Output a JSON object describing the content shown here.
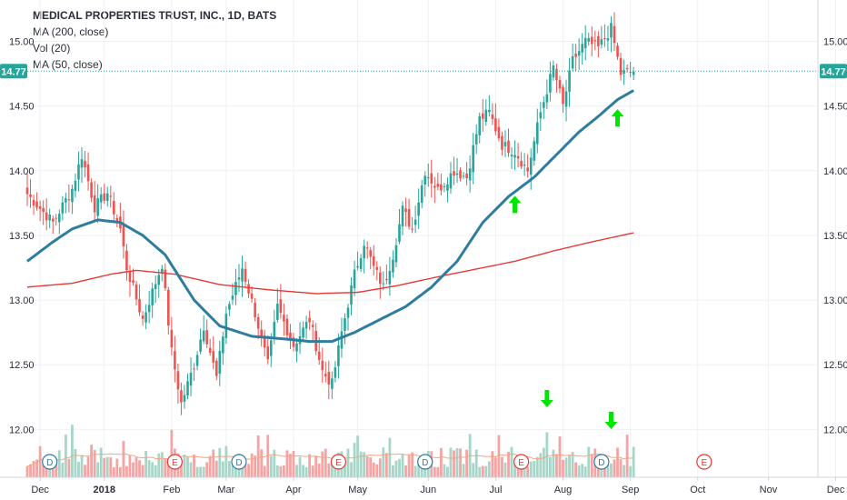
{
  "legend": {
    "title": "MEDICAL PROPERTIES TRUST, INC., 1D, BATS",
    "ma200": "MA (200, close)",
    "vol": "Vol (20)",
    "ma50": "MA (50, close)"
  },
  "colors": {
    "up": "#26a69a",
    "down": "#ef5350",
    "vol_up": "#a5d6c8",
    "vol_down": "#f5a3a3",
    "ma200": "#e53935",
    "ma50": "#2e7d9f",
    "vol_ma": "#f4a582",
    "arrow": "#00e600",
    "last_price": "#26a69a",
    "grid": "#eef0f3",
    "axis_text": "#2a2e39"
  },
  "chart_data": {
    "type": "candlestick",
    "title": "MEDICAL PROPERTIES TRUST, INC., 1D, BATS",
    "y_ticks": [
      "15.00",
      "14.50",
      "14.00",
      "13.50",
      "13.00",
      "12.50",
      "12.00"
    ],
    "ylim": [
      11.63,
      15.32
    ],
    "x_ticks": [
      "Dec",
      "2018",
      "Feb",
      "Mar",
      "Apr",
      "May",
      "Jun",
      "Jul",
      "Aug",
      "Sep",
      "Oct",
      "Nov",
      "Dec"
    ],
    "last_price": 14.77,
    "last_price_label": "14.77",
    "grid": true,
    "anchors": [
      {
        "i": 0,
        "p": 13.82
      },
      {
        "i": 8,
        "p": 13.6
      },
      {
        "i": 14,
        "p": 13.86
      },
      {
        "i": 17,
        "p": 14.12
      },
      {
        "i": 21,
        "p": 13.72
      },
      {
        "i": 25,
        "p": 13.83
      },
      {
        "i": 29,
        "p": 13.55
      },
      {
        "i": 31,
        "p": 13.25
      },
      {
        "i": 36,
        "p": 12.85
      },
      {
        "i": 42,
        "p": 13.28
      },
      {
        "i": 45,
        "p": 12.6
      },
      {
        "i": 48,
        "p": 12.2
      },
      {
        "i": 52,
        "p": 12.5
      },
      {
        "i": 55,
        "p": 12.8
      },
      {
        "i": 59,
        "p": 12.4
      },
      {
        "i": 62,
        "p": 12.9
      },
      {
        "i": 67,
        "p": 13.25
      },
      {
        "i": 71,
        "p": 12.9
      },
      {
        "i": 75,
        "p": 12.5
      },
      {
        "i": 78,
        "p": 12.95
      },
      {
        "i": 83,
        "p": 12.65
      },
      {
        "i": 88,
        "p": 12.85
      },
      {
        "i": 92,
        "p": 12.45
      },
      {
        "i": 95,
        "p": 12.35
      },
      {
        "i": 98,
        "p": 12.75
      },
      {
        "i": 102,
        "p": 13.2
      },
      {
        "i": 105,
        "p": 13.45
      },
      {
        "i": 108,
        "p": 13.25
      },
      {
        "i": 111,
        "p": 13.1
      },
      {
        "i": 114,
        "p": 13.35
      },
      {
        "i": 117,
        "p": 13.7
      },
      {
        "i": 120,
        "p": 13.55
      },
      {
        "i": 124,
        "p": 14.0
      },
      {
        "i": 128,
        "p": 13.85
      },
      {
        "i": 133,
        "p": 14.0
      },
      {
        "i": 137,
        "p": 13.95
      },
      {
        "i": 141,
        "p": 14.4
      },
      {
        "i": 144,
        "p": 14.45
      },
      {
        "i": 148,
        "p": 14.2
      },
      {
        "i": 152,
        "p": 14.15
      },
      {
        "i": 156,
        "p": 14.0
      },
      {
        "i": 160,
        "p": 14.45
      },
      {
        "i": 164,
        "p": 14.8
      },
      {
        "i": 167,
        "p": 14.5
      },
      {
        "i": 170,
        "p": 14.85
      },
      {
        "i": 174,
        "p": 15.0
      },
      {
        "i": 178,
        "p": 14.95
      },
      {
        "i": 182,
        "p": 15.1
      },
      {
        "i": 185,
        "p": 14.75
      },
      {
        "i": 189,
        "p": 14.77
      }
    ],
    "ma50": [
      {
        "i": 0,
        "p": 13.3
      },
      {
        "i": 8,
        "p": 13.45
      },
      {
        "i": 14,
        "p": 13.55
      },
      {
        "i": 22,
        "p": 13.62
      },
      {
        "i": 29,
        "p": 13.6
      },
      {
        "i": 36,
        "p": 13.5
      },
      {
        "i": 43,
        "p": 13.35
      },
      {
        "i": 52,
        "p": 13.0
      },
      {
        "i": 60,
        "p": 12.8
      },
      {
        "i": 70,
        "p": 12.72
      },
      {
        "i": 80,
        "p": 12.7
      },
      {
        "i": 88,
        "p": 12.68
      },
      {
        "i": 95,
        "p": 12.68
      },
      {
        "i": 102,
        "p": 12.75
      },
      {
        "i": 110,
        "p": 12.85
      },
      {
        "i": 118,
        "p": 12.95
      },
      {
        "i": 126,
        "p": 13.1
      },
      {
        "i": 134,
        "p": 13.3
      },
      {
        "i": 142,
        "p": 13.6
      },
      {
        "i": 150,
        "p": 13.8
      },
      {
        "i": 158,
        "p": 13.95
      },
      {
        "i": 166,
        "p": 14.15
      },
      {
        "i": 172,
        "p": 14.3
      },
      {
        "i": 178,
        "p": 14.42
      },
      {
        "i": 184,
        "p": 14.55
      },
      {
        "i": 189,
        "p": 14.62
      }
    ],
    "ma200": [
      {
        "i": 0,
        "p": 13.1
      },
      {
        "i": 14,
        "p": 13.13
      },
      {
        "i": 26,
        "p": 13.2
      },
      {
        "i": 34,
        "p": 13.23
      },
      {
        "i": 46,
        "p": 13.2
      },
      {
        "i": 60,
        "p": 13.12
      },
      {
        "i": 75,
        "p": 13.08
      },
      {
        "i": 90,
        "p": 13.05
      },
      {
        "i": 103,
        "p": 13.06
      },
      {
        "i": 115,
        "p": 13.11
      },
      {
        "i": 128,
        "p": 13.18
      },
      {
        "i": 140,
        "p": 13.24
      },
      {
        "i": 152,
        "p": 13.3
      },
      {
        "i": 164,
        "p": 13.38
      },
      {
        "i": 176,
        "p": 13.45
      },
      {
        "i": 189,
        "p": 13.52
      }
    ],
    "events": [
      {
        "type": "D",
        "i": 7
      },
      {
        "type": "E",
        "i": 46
      },
      {
        "type": "D",
        "i": 66
      },
      {
        "type": "E",
        "i": 97
      },
      {
        "type": "D",
        "i": 124
      },
      {
        "type": "E",
        "i": 154
      },
      {
        "type": "D",
        "i": 179
      },
      {
        "type": "E",
        "i": 211
      }
    ],
    "arrows": [
      {
        "dir": "up",
        "i": 152,
        "p": 13.82
      },
      {
        "dir": "up",
        "i": 184,
        "p": 14.49
      },
      {
        "dir": "down_vol",
        "i": 162
      },
      {
        "dir": "down_vol",
        "i": 182
      }
    ]
  }
}
